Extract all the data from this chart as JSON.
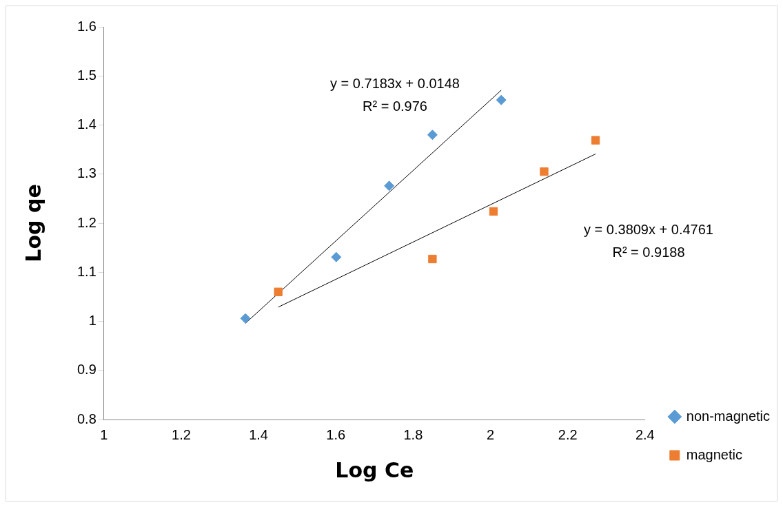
{
  "chart_data": {
    "type": "scatter",
    "xlabel": "Log Ce",
    "ylabel": "Log qe",
    "xlim": [
      1,
      2.4
    ],
    "xticks": [
      1,
      1.2,
      1.4,
      1.6,
      1.8,
      2,
      2.2,
      2.4
    ],
    "ylim": [
      0.8,
      1.6
    ],
    "yticks": [
      0.8,
      0.9,
      1,
      1.1,
      1.2,
      1.3,
      1.4,
      1.5,
      1.6
    ],
    "grid": false,
    "legend": "right",
    "series": [
      {
        "name": "non-magnetic",
        "color": "#5b9bd5",
        "marker": "diamond",
        "x": [
          1.366,
          1.601,
          1.738,
          1.85,
          2.028
        ],
        "values": [
          1.006,
          1.131,
          1.276,
          1.38,
          1.451
        ]
      },
      {
        "name": "magnetic",
        "color": "#ed7d31",
        "marker": "square",
        "x": [
          1.451,
          1.85,
          2.008,
          2.139,
          2.272
        ],
        "values": [
          1.06,
          1.127,
          1.224,
          1.305,
          1.369
        ]
      },
      {
        "type": "line",
        "color": "#000000",
        "marker": "none",
        "x": [
          1.366,
          2.028
        ],
        "values": [
          0.996,
          1.471
        ]
      },
      {
        "type": "line",
        "color": "#000000",
        "marker": "none",
        "x": [
          1.451,
          2.272
        ],
        "values": [
          1.029,
          1.341
        ]
      }
    ],
    "annotations": [
      "y = 0.7183x + 0.0148",
      "R² = 0.976",
      "y = 0.3809x + 0.4761",
      "R² = 0.9188"
    ]
  }
}
